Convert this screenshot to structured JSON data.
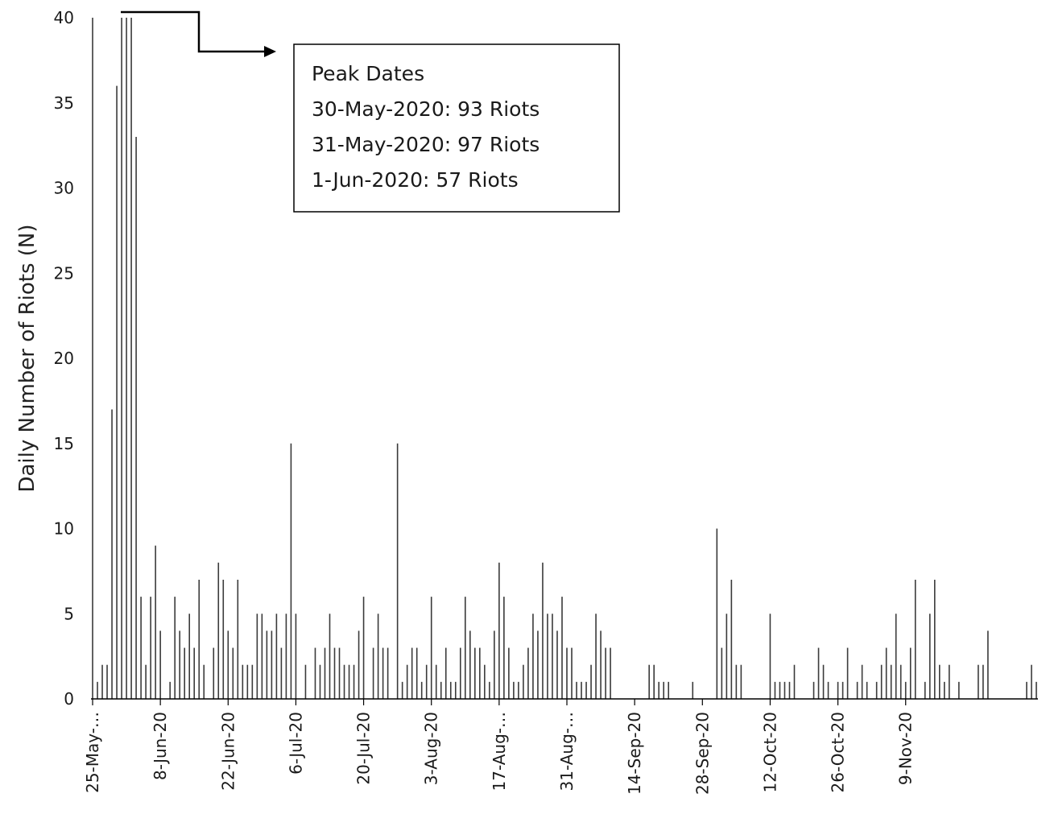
{
  "chart_data": {
    "type": "bar",
    "title": "",
    "xlabel": "",
    "ylabel": "Daily Number of Riots (N)",
    "ylim": [
      0,
      40
    ],
    "yticks": [
      0,
      5,
      10,
      15,
      20,
      25,
      30,
      35,
      40
    ],
    "x_start": "25-May-20",
    "x_end": "23-Nov-20",
    "xtick_labels": [
      "25-May-…",
      "8-Jun-20",
      "22-Jun-20",
      "6-Jul-20",
      "20-Jul-20",
      "3-Aug-20",
      "17-Aug-…",
      "31-Aug-…",
      "14-Sep-20",
      "28-Sep-20",
      "12-Oct-20",
      "26-Oct-20",
      "9-Nov-20"
    ],
    "values": [
      40,
      1,
      2,
      2,
      17,
      36,
      40,
      40,
      40,
      33,
      6,
      2,
      6,
      9,
      4,
      0,
      1,
      6,
      4,
      3,
      5,
      3,
      7,
      2,
      0,
      3,
      8,
      7,
      4,
      3,
      7,
      2,
      2,
      2,
      5,
      5,
      4,
      4,
      5,
      3,
      5,
      15,
      5,
      0,
      2,
      0,
      3,
      2,
      3,
      5,
      3,
      3,
      2,
      2,
      2,
      4,
      6,
      0,
      3,
      5,
      3,
      3,
      0,
      15,
      1,
      2,
      3,
      3,
      1,
      2,
      6,
      2,
      1,
      3,
      1,
      1,
      3,
      6,
      4,
      3,
      3,
      2,
      1,
      4,
      8,
      6,
      3,
      1,
      1,
      2,
      3,
      5,
      4,
      8,
      5,
      5,
      4,
      6,
      3,
      3,
      1,
      1,
      1,
      2,
      5,
      4,
      3,
      3,
      0,
      0,
      0,
      0,
      0,
      0,
      0,
      2,
      2,
      1,
      1,
      1,
      0,
      0,
      0,
      0,
      1,
      0,
      0,
      0,
      0,
      10,
      3,
      5,
      7,
      2,
      2,
      0,
      0,
      0,
      0,
      0,
      5,
      1,
      1,
      1,
      1,
      2,
      0,
      0,
      0,
      1,
      3,
      2,
      1,
      0,
      1,
      1,
      3,
      0,
      1,
      2,
      1,
      0,
      1,
      2,
      3,
      2,
      5,
      2,
      1,
      3,
      7,
      0,
      1,
      5,
      7,
      2,
      1,
      2,
      0,
      1,
      0,
      0,
      0,
      2,
      2,
      4,
      0,
      0,
      0,
      0,
      0,
      0,
      0,
      1,
      2,
      1
    ],
    "annotation": {
      "title": "Peak Dates",
      "lines": [
        "30-May-2020: 93 Riots",
        "31-May-2020: 97 Riots",
        "1-Jun-2020: 57 Riots"
      ]
    },
    "bar_color": "#3a3a3a",
    "legend": "none",
    "grid": false
  }
}
